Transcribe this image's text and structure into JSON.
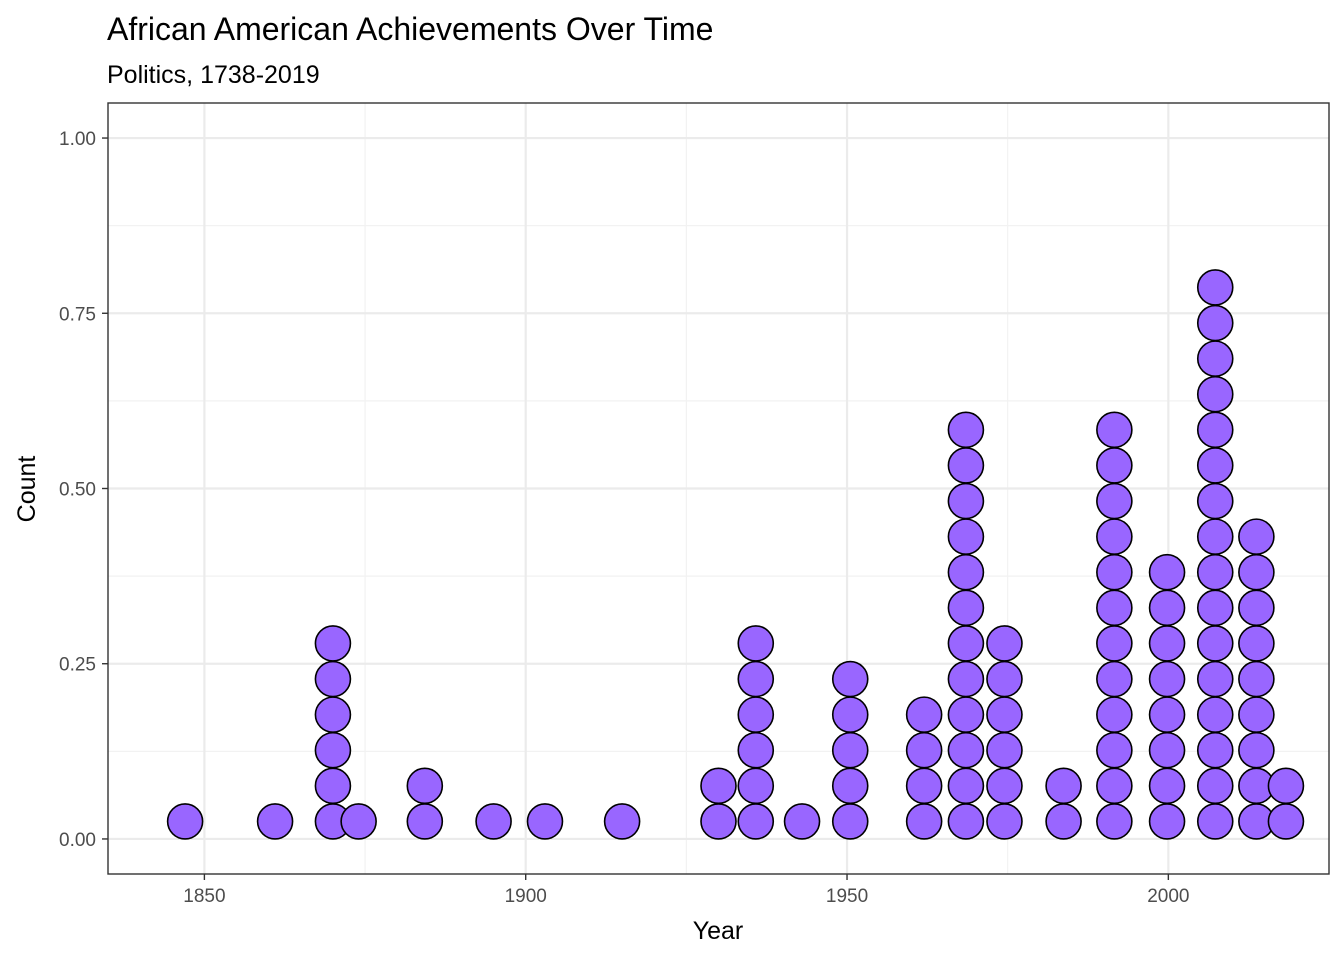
{
  "chart_data": {
    "type": "dotplot",
    "title": "African American Achievements Over Time",
    "subtitle": "Politics, 1738-2019",
    "xlabel": "Year",
    "ylabel": "Count",
    "xlim": [
      1835,
      2025
    ],
    "ylim": [
      -0.05,
      1.05
    ],
    "x_ticks": [
      1850,
      1900,
      1950,
      2000
    ],
    "x_tick_labels": [
      "1850",
      "1900",
      "1950",
      "2000"
    ],
    "y_ticks": [
      0,
      0.25,
      0.5,
      0.75,
      1
    ],
    "y_tick_labels": [
      "0.00",
      "0.25",
      "0.50",
      "0.75",
      "1.00"
    ],
    "dot_color": "#9966FF",
    "dot_outline": "#000000",
    "grid": true,
    "stacks": [
      {
        "x": 1847.0,
        "count": 1
      },
      {
        "x": 1861.0,
        "count": 1
      },
      {
        "x": 1870.0,
        "count": 6
      },
      {
        "x": 1874.0,
        "count": 1
      },
      {
        "x": 1884.3,
        "count": 2
      },
      {
        "x": 1895.0,
        "count": 1
      },
      {
        "x": 1903.0,
        "count": 1
      },
      {
        "x": 1915.0,
        "count": 1
      },
      {
        "x": 1930.0,
        "count": 2
      },
      {
        "x": 1935.8,
        "count": 6
      },
      {
        "x": 1943.0,
        "count": 1
      },
      {
        "x": 1950.5,
        "count": 5
      },
      {
        "x": 1962.0,
        "count": 4
      },
      {
        "x": 1968.5,
        "count": 12
      },
      {
        "x": 1974.5,
        "count": 6
      },
      {
        "x": 1983.7,
        "count": 2
      },
      {
        "x": 1991.6,
        "count": 12
      },
      {
        "x": 1999.8,
        "count": 8
      },
      {
        "x": 2007.3,
        "count": 16
      },
      {
        "x": 2013.7,
        "count": 9
      },
      {
        "x": 2018.3,
        "count": 2
      }
    ]
  }
}
